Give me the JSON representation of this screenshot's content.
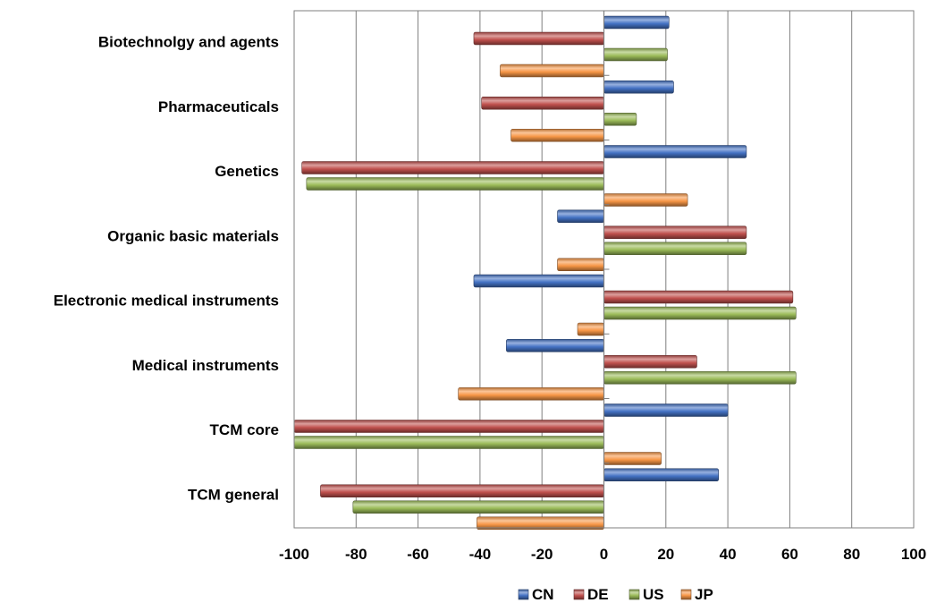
{
  "chart_data": {
    "type": "bar",
    "orientation": "horizontal",
    "title": "",
    "xlabel": "",
    "ylabel": "",
    "xlim": [
      -100,
      100
    ],
    "xticks": [
      "-100",
      "-80",
      "-60",
      "-40",
      "-20",
      "0",
      "20",
      "40",
      "60",
      "80",
      "100"
    ],
    "categories": [
      "Biotechnolgy and agents",
      "Pharmaceuticals",
      "Genetics",
      "Organic basic materials",
      "Electronic medical instruments",
      "Medical instruments",
      "TCM core",
      "TCM general"
    ],
    "series": [
      {
        "name": "CN",
        "color": "#4472C4",
        "values": [
          21,
          22.5,
          46,
          -15,
          -42,
          -31.5,
          40,
          37
        ]
      },
      {
        "name": "DE",
        "color": "#C0504D",
        "values": [
          -42,
          -39.5,
          -97.5,
          46,
          61,
          30,
          -100,
          -91.5
        ]
      },
      {
        "name": "US",
        "color": "#9BBB59",
        "values": [
          20.5,
          10.5,
          -96,
          46,
          62,
          62,
          -100,
          -81
        ]
      },
      {
        "name": "JP",
        "color": "#F79646",
        "values": [
          -33.5,
          -30,
          27,
          -15,
          -8.5,
          -47,
          18.5,
          -41
        ]
      }
    ],
    "grid": "vertical",
    "legend": "bottom"
  }
}
